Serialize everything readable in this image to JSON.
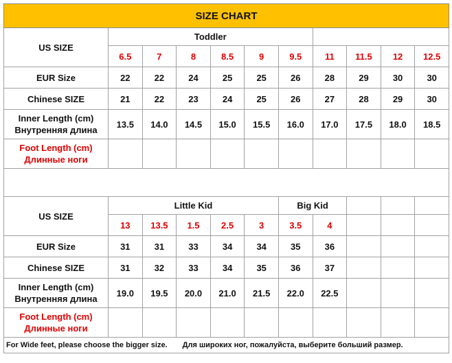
{
  "title": "SIZE CHART",
  "sections": [
    {
      "us_size_label": "US SIZE",
      "groups": [
        {
          "label": "Toddler",
          "sizes": [
            "6.5",
            "7",
            "8",
            "8.5",
            "9",
            "9.5"
          ]
        },
        {
          "label": null,
          "sizes": [
            "11",
            "11.5",
            "12",
            "12.5"
          ]
        }
      ],
      "rows": [
        {
          "label": [
            "EUR Size"
          ],
          "values": [
            "22",
            "22",
            "24",
            "25",
            "25",
            "26",
            "28",
            "29",
            "30",
            "30"
          ]
        },
        {
          "label": [
            "Chinese SIZE"
          ],
          "values": [
            "21",
            "22",
            "23",
            "24",
            "25",
            "26",
            "27",
            "28",
            "29",
            "30"
          ]
        },
        {
          "label": [
            "Inner Length (cm)",
            "Внутренняя длина"
          ],
          "values": [
            "13.5",
            "14.0",
            "14.5",
            "15.0",
            "15.5",
            "16.0",
            "17.0",
            "17.5",
            "18.0",
            "18.5"
          ]
        },
        {
          "label": [
            "Foot Length (cm)",
            "Длинные ноги"
          ],
          "values": []
        }
      ]
    },
    {
      "us_size_label": "US SIZE",
      "groups": [
        {
          "label": "Little Kid",
          "sizes": [
            "13",
            "13.5",
            "1.5",
            "2.5",
            "3"
          ]
        },
        {
          "label": "Big Kid",
          "sizes": [
            "3.5",
            "4"
          ]
        }
      ],
      "rows": [
        {
          "label": [
            "EUR Size"
          ],
          "values": [
            "31",
            "31",
            "33",
            "34",
            "34",
            "35",
            "36"
          ]
        },
        {
          "label": [
            "Chinese SIZE"
          ],
          "values": [
            "31",
            "32",
            "33",
            "34",
            "35",
            "36",
            "37"
          ]
        },
        {
          "label": [
            "Inner Length (cm)",
            "Внутренняя длина"
          ],
          "values": [
            "19.0",
            "19.5",
            "20.0",
            "21.0",
            "21.5",
            "22.0",
            "22.5"
          ]
        },
        {
          "label": [
            "Foot Length (cm)",
            "Длинные ноги"
          ],
          "values": []
        }
      ]
    }
  ],
  "footer": [
    "For Wide feet, please choose the bigger size.",
    "Для широких ног, пожалуйста, выберите больший размер."
  ]
}
